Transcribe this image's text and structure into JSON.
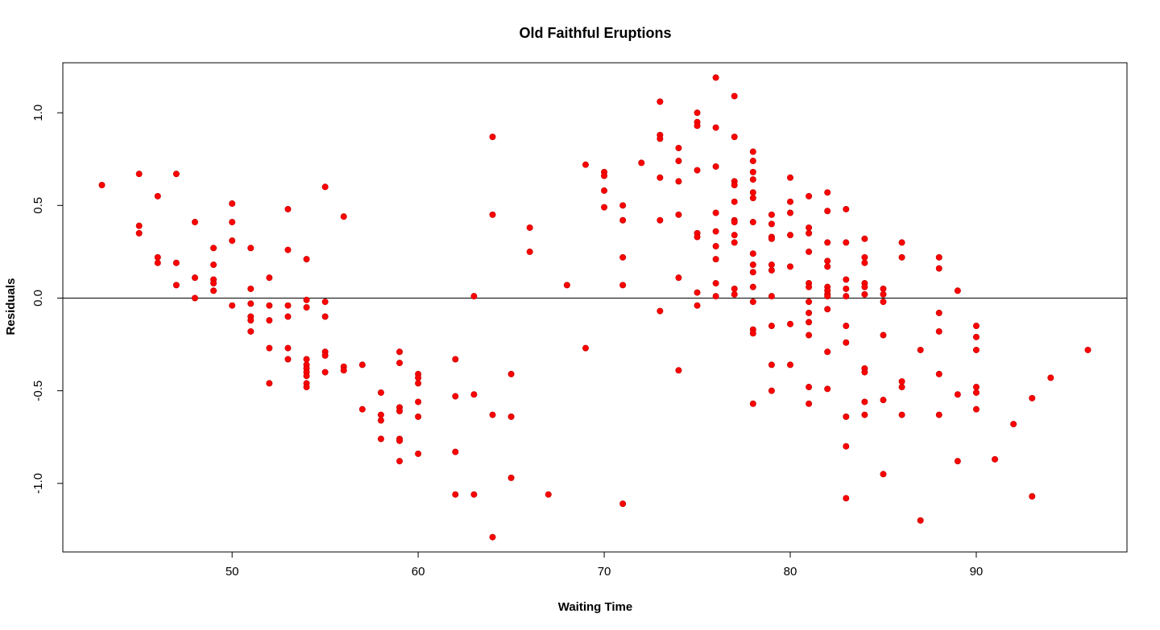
{
  "chart_data": {
    "type": "scatter",
    "title": "Old Faithful Eruptions",
    "xlabel": "Waiting Time",
    "ylabel": "Residuals",
    "xlim": [
      40.9,
      98.1
    ],
    "ylim": [
      -1.37,
      1.27
    ],
    "x_ticks": [
      50,
      60,
      70,
      80,
      90
    ],
    "y_ticks": [
      -1.0,
      -0.5,
      0.0,
      0.5,
      1.0
    ],
    "tick_labels": {
      "x": [
        "50",
        "60",
        "70",
        "80",
        "90"
      ],
      "y": [
        "-1.0",
        "-0.5",
        "0.0",
        "0.5",
        "1.0"
      ]
    },
    "reference_line": {
      "y": 0
    },
    "point_color": "#ff0000",
    "point_stroke": "#c80000",
    "grid": false,
    "points": [
      [
        43,
        0.61
      ],
      [
        45,
        0.67
      ],
      [
        45,
        0.39
      ],
      [
        45,
        0.35
      ],
      [
        46,
        0.55
      ],
      [
        46,
        0.22
      ],
      [
        46,
        0.19
      ],
      [
        47,
        0.67
      ],
      [
        47,
        0.19
      ],
      [
        47,
        0.07
      ],
      [
        48,
        0.41
      ],
      [
        48,
        0.11
      ],
      [
        48,
        0.0
      ],
      [
        49,
        0.27
      ],
      [
        49,
        0.18
      ],
      [
        49,
        0.1
      ],
      [
        49,
        0.08
      ],
      [
        49,
        0.04
      ],
      [
        50,
        0.51
      ],
      [
        50,
        0.41
      ],
      [
        50,
        0.31
      ],
      [
        50,
        -0.04
      ],
      [
        51,
        0.27
      ],
      [
        51,
        0.05
      ],
      [
        51,
        -0.03
      ],
      [
        51,
        -0.1
      ],
      [
        51,
        -0.12
      ],
      [
        51,
        -0.18
      ],
      [
        52,
        0.11
      ],
      [
        52,
        -0.04
      ],
      [
        52,
        -0.12
      ],
      [
        52,
        -0.27
      ],
      [
        52,
        -0.46
      ],
      [
        53,
        0.48
      ],
      [
        53,
        0.26
      ],
      [
        53,
        -0.04
      ],
      [
        53,
        -0.1
      ],
      [
        53,
        -0.27
      ],
      [
        53,
        -0.33
      ],
      [
        54,
        0.21
      ],
      [
        54,
        -0.01
      ],
      [
        54,
        -0.05
      ],
      [
        54,
        -0.33
      ],
      [
        54,
        -0.36
      ],
      [
        54,
        -0.38
      ],
      [
        54,
        -0.4
      ],
      [
        54,
        -0.42
      ],
      [
        54,
        -0.46
      ],
      [
        54,
        -0.48
      ],
      [
        55,
        0.6
      ],
      [
        55,
        -0.02
      ],
      [
        55,
        -0.1
      ],
      [
        55,
        -0.29
      ],
      [
        55,
        -0.31
      ],
      [
        55,
        -0.4
      ],
      [
        56,
        0.44
      ],
      [
        56,
        -0.37
      ],
      [
        56,
        -0.39
      ],
      [
        57,
        -0.36
      ],
      [
        57,
        -0.6
      ],
      [
        58,
        -0.51
      ],
      [
        58,
        -0.63
      ],
      [
        58,
        -0.66
      ],
      [
        58,
        -0.76
      ],
      [
        59,
        -0.29
      ],
      [
        59,
        -0.35
      ],
      [
        59,
        -0.59
      ],
      [
        59,
        -0.61
      ],
      [
        59,
        -0.76
      ],
      [
        59,
        -0.77
      ],
      [
        59,
        -0.88
      ],
      [
        60,
        -0.41
      ],
      [
        60,
        -0.43
      ],
      [
        60,
        -0.46
      ],
      [
        60,
        -0.56
      ],
      [
        60,
        -0.64
      ],
      [
        60,
        -0.84
      ],
      [
        62,
        -0.33
      ],
      [
        62,
        -0.53
      ],
      [
        62,
        -0.83
      ],
      [
        62,
        -1.06
      ],
      [
        63,
        0.01
      ],
      [
        63,
        -0.52
      ],
      [
        63,
        -1.06
      ],
      [
        64,
        0.87
      ],
      [
        64,
        0.45
      ],
      [
        64,
        -0.63
      ],
      [
        64,
        -1.29
      ],
      [
        65,
        -0.41
      ],
      [
        65,
        -0.64
      ],
      [
        65,
        -0.97
      ],
      [
        66,
        0.38
      ],
      [
        66,
        0.25
      ],
      [
        67,
        -1.06
      ],
      [
        68,
        0.07
      ],
      [
        69,
        0.72
      ],
      [
        69,
        -0.27
      ],
      [
        70,
        0.68
      ],
      [
        70,
        0.66
      ],
      [
        70,
        0.58
      ],
      [
        70,
        0.49
      ],
      [
        71,
        0.5
      ],
      [
        71,
        0.42
      ],
      [
        71,
        0.22
      ],
      [
        71,
        0.07
      ],
      [
        71,
        -1.11
      ],
      [
        72,
        0.73
      ],
      [
        73,
        1.06
      ],
      [
        73,
        0.88
      ],
      [
        73,
        0.86
      ],
      [
        73,
        0.65
      ],
      [
        73,
        0.42
      ],
      [
        73,
        -0.07
      ],
      [
        74,
        0.81
      ],
      [
        74,
        0.74
      ],
      [
        74,
        0.63
      ],
      [
        74,
        0.45
      ],
      [
        74,
        0.11
      ],
      [
        74,
        -0.39
      ],
      [
        75,
        1.0
      ],
      [
        75,
        0.95
      ],
      [
        75,
        0.93
      ],
      [
        75,
        0.69
      ],
      [
        75,
        0.35
      ],
      [
        75,
        0.33
      ],
      [
        75,
        0.03
      ],
      [
        75,
        -0.04
      ],
      [
        76,
        1.19
      ],
      [
        76,
        0.92
      ],
      [
        76,
        0.71
      ],
      [
        76,
        0.46
      ],
      [
        76,
        0.36
      ],
      [
        76,
        0.28
      ],
      [
        76,
        0.21
      ],
      [
        76,
        0.08
      ],
      [
        76,
        0.01
      ],
      [
        77,
        1.09
      ],
      [
        77,
        0.87
      ],
      [
        77,
        0.63
      ],
      [
        77,
        0.61
      ],
      [
        77,
        0.52
      ],
      [
        77,
        0.42
      ],
      [
        77,
        0.41
      ],
      [
        77,
        0.34
      ],
      [
        77,
        0.3
      ],
      [
        77,
        0.05
      ],
      [
        77,
        0.02
      ],
      [
        78,
        0.79
      ],
      [
        78,
        0.74
      ],
      [
        78,
        0.68
      ],
      [
        78,
        0.64
      ],
      [
        78,
        0.57
      ],
      [
        78,
        0.54
      ],
      [
        78,
        0.41
      ],
      [
        78,
        0.24
      ],
      [
        78,
        0.18
      ],
      [
        78,
        0.14
      ],
      [
        78,
        0.06
      ],
      [
        78,
        -0.02
      ],
      [
        78,
        -0.17
      ],
      [
        78,
        -0.19
      ],
      [
        78,
        -0.57
      ],
      [
        79,
        0.45
      ],
      [
        79,
        0.4
      ],
      [
        79,
        0.33
      ],
      [
        79,
        0.32
      ],
      [
        79,
        0.18
      ],
      [
        79,
        0.15
      ],
      [
        79,
        0.01
      ],
      [
        79,
        -0.15
      ],
      [
        79,
        -0.36
      ],
      [
        79,
        -0.5
      ],
      [
        80,
        0.65
      ],
      [
        80,
        0.52
      ],
      [
        80,
        0.46
      ],
      [
        80,
        0.34
      ],
      [
        80,
        0.17
      ],
      [
        80,
        -0.14
      ],
      [
        80,
        -0.36
      ],
      [
        81,
        0.55
      ],
      [
        81,
        0.38
      ],
      [
        81,
        0.35
      ],
      [
        81,
        0.25
      ],
      [
        81,
        0.08
      ],
      [
        81,
        0.06
      ],
      [
        81,
        -0.02
      ],
      [
        81,
        -0.08
      ],
      [
        81,
        -0.13
      ],
      [
        81,
        -0.2
      ],
      [
        81,
        -0.48
      ],
      [
        81,
        -0.57
      ],
      [
        82,
        0.57
      ],
      [
        82,
        0.47
      ],
      [
        82,
        0.3
      ],
      [
        82,
        0.2
      ],
      [
        82,
        0.17
      ],
      [
        82,
        0.06
      ],
      [
        82,
        0.04
      ],
      [
        82,
        0.02
      ],
      [
        82,
        0.01
      ],
      [
        82,
        -0.06
      ],
      [
        82,
        -0.29
      ],
      [
        82,
        -0.49
      ],
      [
        83,
        0.48
      ],
      [
        83,
        0.3
      ],
      [
        83,
        0.1
      ],
      [
        83,
        0.05
      ],
      [
        83,
        0.01
      ],
      [
        83,
        -0.15
      ],
      [
        83,
        -0.24
      ],
      [
        83,
        -0.64
      ],
      [
        83,
        -0.8
      ],
      [
        83,
        -1.08
      ],
      [
        84,
        0.32
      ],
      [
        84,
        0.22
      ],
      [
        84,
        0.19
      ],
      [
        84,
        0.08
      ],
      [
        84,
        0.06
      ],
      [
        84,
        0.02
      ],
      [
        84,
        -0.38
      ],
      [
        84,
        -0.4
      ],
      [
        84,
        -0.56
      ],
      [
        84,
        -0.63
      ],
      [
        85,
        0.05
      ],
      [
        85,
        0.02
      ],
      [
        85,
        -0.02
      ],
      [
        85,
        -0.2
      ],
      [
        85,
        -0.55
      ],
      [
        85,
        -0.95
      ],
      [
        86,
        0.3
      ],
      [
        86,
        0.22
      ],
      [
        86,
        -0.45
      ],
      [
        86,
        -0.48
      ],
      [
        86,
        -0.63
      ],
      [
        87,
        -0.28
      ],
      [
        87,
        -1.2
      ],
      [
        88,
        0.22
      ],
      [
        88,
        0.16
      ],
      [
        88,
        -0.08
      ],
      [
        88,
        -0.18
      ],
      [
        88,
        -0.41
      ],
      [
        88,
        -0.63
      ],
      [
        89,
        0.04
      ],
      [
        89,
        -0.52
      ],
      [
        89,
        -0.88
      ],
      [
        90,
        -0.15
      ],
      [
        90,
        -0.21
      ],
      [
        90,
        -0.28
      ],
      [
        90,
        -0.48
      ],
      [
        90,
        -0.51
      ],
      [
        90,
        -0.6
      ],
      [
        91,
        -0.87
      ],
      [
        92,
        -0.68
      ],
      [
        93,
        -0.54
      ],
      [
        93,
        -1.07
      ],
      [
        94,
        -0.43
      ],
      [
        96,
        -0.28
      ]
    ]
  }
}
